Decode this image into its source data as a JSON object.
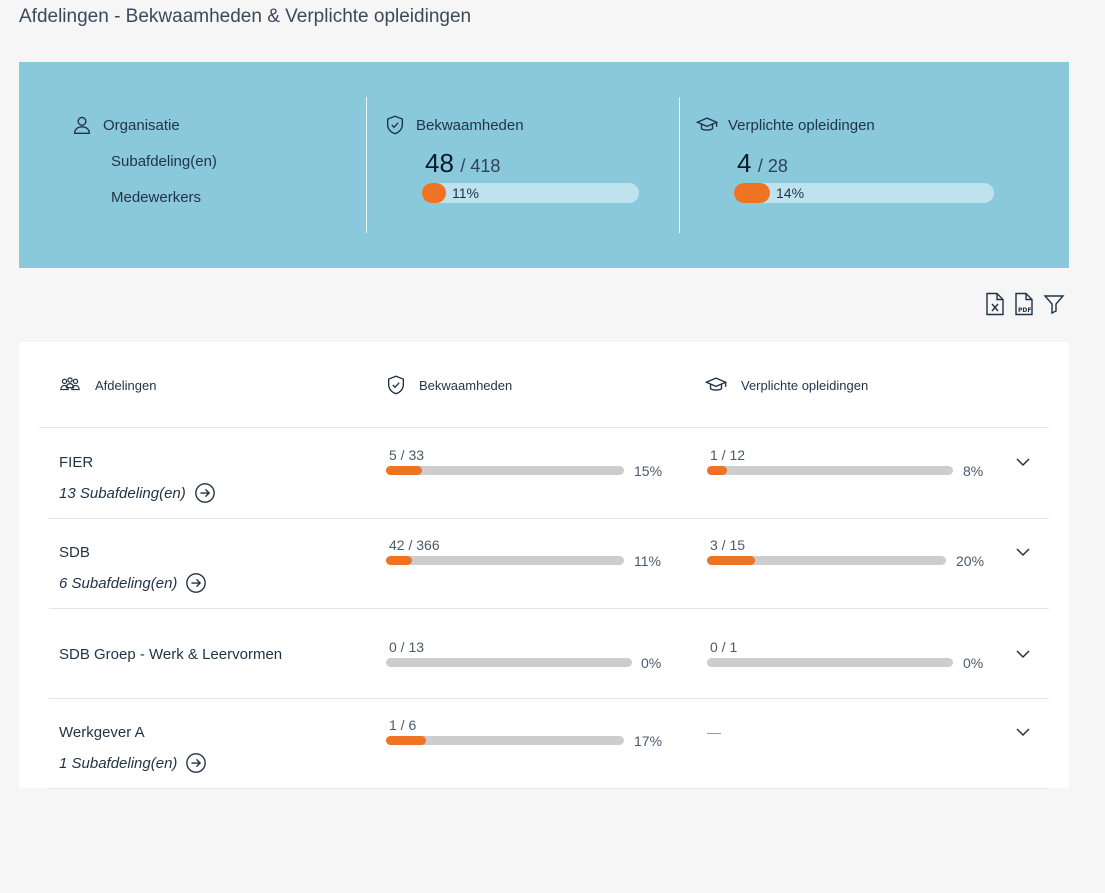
{
  "page": {
    "title": "Afdelingen - Bekwaamheden & Verplichte opleidingen"
  },
  "summary": {
    "organisatie": {
      "label": "Organisatie",
      "items": [
        "Subafdeling(en)",
        "Medewerkers"
      ]
    },
    "bekwaamheden": {
      "label": "Bekwaamheden",
      "done": "48",
      "total": "/ 418",
      "percent": "11%",
      "fraction": 0.11
    },
    "opleidingen": {
      "label": "Verplichte opleidingen",
      "done": "4",
      "total": "/ 28",
      "percent": "14%",
      "fraction": 0.14
    }
  },
  "toolbar": {
    "excel_icon": "excel-export-icon",
    "pdf_icon": "pdf-export-icon",
    "filter_icon": "filter-icon"
  },
  "table": {
    "headers": {
      "afdelingen": "Afdelingen",
      "bekwaamheden": "Bekwaamheden",
      "opleidingen": "Verplichte opleidingen"
    },
    "rows": [
      {
        "name": "FIER",
        "sub": "13 Subafdeling(en)",
        "bek": {
          "frac": "5 / 33",
          "pct": "15%",
          "fraction": 0.15
        },
        "opl": {
          "frac": "1 / 12",
          "pct": "8%",
          "fraction": 0.08
        }
      },
      {
        "name": "SDB",
        "sub": "6 Subafdeling(en)",
        "bek": {
          "frac": "42 / 366",
          "pct": "11%",
          "fraction": 0.11
        },
        "opl": {
          "frac": "3 / 15",
          "pct": "20%",
          "fraction": 0.2
        }
      },
      {
        "name": "SDB Groep - Werk & Leervormen",
        "sub": "",
        "bek": {
          "frac": "0 / 13",
          "pct": "0%",
          "fraction": 0
        },
        "opl": {
          "frac": "0 / 1",
          "pct": "0%",
          "fraction": 0
        }
      },
      {
        "name": "Werkgever A",
        "sub": "1 Subafdeling(en)",
        "bek": {
          "frac": "1 / 6",
          "pct": "17%",
          "fraction": 0.17
        },
        "opl": {
          "dash": "—"
        }
      }
    ]
  }
}
